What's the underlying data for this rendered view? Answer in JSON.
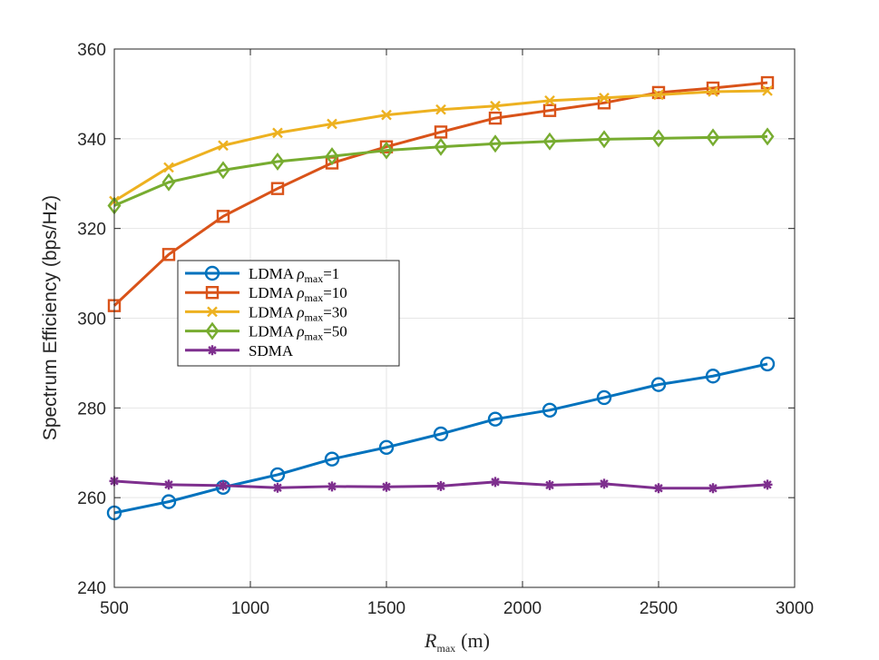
{
  "chart_data": {
    "type": "line",
    "title": "",
    "xlabel_main": "R",
    "xlabel_sub": "max",
    "xlabel_unit": "(m)",
    "ylabel": "Spectrum Efficiency (bps/Hz)",
    "xlim": [
      500,
      3000
    ],
    "ylim": [
      240,
      360
    ],
    "xticks": [
      500,
      1000,
      1500,
      2000,
      2500,
      3000
    ],
    "yticks": [
      240,
      260,
      280,
      300,
      320,
      340,
      360
    ],
    "grid": true,
    "legend_location": "center-left",
    "x": [
      500,
      700,
      900,
      1100,
      1300,
      1500,
      1700,
      1900,
      2100,
      2300,
      2500,
      2700,
      2900
    ],
    "series": [
      {
        "name": "LDMA ρmax=1",
        "legend_prefix": "LDMA ",
        "legend_rho": "ρ",
        "legend_sub": "max",
        "legend_value": "=1",
        "color": "#0072BD",
        "marker": "circle",
        "values": [
          256.6,
          259.1,
          262.3,
          265.1,
          268.6,
          271.2,
          274.2,
          277.5,
          279.5,
          282.3,
          285.2,
          287.1,
          289.8
        ]
      },
      {
        "name": "LDMA ρmax=10",
        "legend_prefix": "LDMA ",
        "legend_rho": "ρ",
        "legend_sub": "max",
        "legend_value": "=10",
        "color": "#D95319",
        "marker": "square",
        "values": [
          302.8,
          314.2,
          322.7,
          328.9,
          334.6,
          338.2,
          341.5,
          344.6,
          346.3,
          348.0,
          350.3,
          351.3,
          352.5
        ]
      },
      {
        "name": "LDMA ρmax=30",
        "legend_prefix": "LDMA ",
        "legend_rho": "ρ",
        "legend_sub": "max",
        "legend_value": "=30",
        "color": "#EDB120",
        "marker": "x",
        "values": [
          326.1,
          333.6,
          338.5,
          341.3,
          343.3,
          345.3,
          346.5,
          347.3,
          348.5,
          349.1,
          349.8,
          350.5,
          350.7
        ]
      },
      {
        "name": "LDMA ρmax=50",
        "legend_prefix": "LDMA ",
        "legend_rho": "ρ",
        "legend_sub": "max",
        "legend_value": "=50",
        "color": "#77AC30",
        "marker": "diamond",
        "values": [
          325.1,
          330.3,
          333.0,
          334.9,
          336.1,
          337.4,
          338.2,
          338.9,
          339.4,
          339.9,
          340.1,
          340.3,
          340.5
        ]
      },
      {
        "name": "SDMA",
        "legend_prefix": "SDMA",
        "legend_rho": "",
        "legend_sub": "",
        "legend_value": "",
        "color": "#7E2F8E",
        "marker": "asterisk",
        "values": [
          263.7,
          262.9,
          262.7,
          262.2,
          262.5,
          262.4,
          262.6,
          263.5,
          262.8,
          263.1,
          262.1,
          262.1,
          262.9
        ]
      }
    ]
  }
}
